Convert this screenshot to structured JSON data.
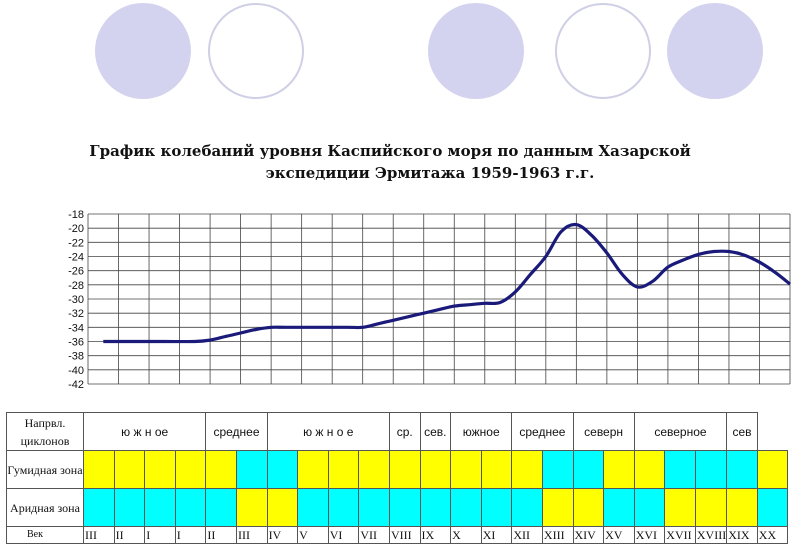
{
  "title_line1": "График колебаний уровня Каспийского моря по данным Хазарской",
  "title_line2": "экспедиции Эрмитажа 1959-1963 г.г.",
  "chart_data": {
    "type": "line",
    "title": "График колебаний уровня Каспийского моря по данным Хазарской экспедиции Эрмитажа 1959-1963 г.г.",
    "ylim": [
      -42,
      -18
    ],
    "yticks": [
      "-18",
      "-20",
      "-22",
      "-24",
      "-26",
      "-28",
      "-30",
      "-32",
      "-34",
      "-36",
      "-38",
      "-40",
      "-42"
    ],
    "grid": true,
    "series": [
      {
        "color": "#1a1a7a",
        "x": [
          0,
          1,
          2,
          3,
          3.5,
          4,
          4.5,
          5,
          5.5,
          6,
          7,
          8,
          8.5,
          9,
          9.5,
          10,
          10.5,
          11,
          11.5,
          12,
          12.5,
          13,
          13.5,
          14,
          14.5,
          15,
          15.5,
          16,
          16.5,
          17,
          17.5,
          18,
          18.5,
          19,
          19.5,
          20,
          20.5,
          21,
          21.5,
          22,
          22.5
        ],
        "values": [
          -36,
          -36,
          -36,
          -36,
          -35.8,
          -35.3,
          -34.8,
          -34.3,
          -34,
          -34,
          -34,
          -34,
          -34,
          -33.5,
          -33,
          -32.5,
          -32,
          -31.5,
          -31,
          -30.8,
          -30.6,
          -30.5,
          -29,
          -26.5,
          -24,
          -20.5,
          -19.5,
          -21,
          -23.5,
          -26.5,
          -28.3,
          -27.5,
          -25.5,
          -24.5,
          -23.7,
          -23.3,
          -23.3,
          -23.8,
          -24.8,
          -26.2,
          -27.9
        ]
      }
    ]
  },
  "table": {
    "row_labels": {
      "direction": "Напрвл. циклонов",
      "humid": "Гумидная зона",
      "arid": "Аридная зона",
      "century": "Век"
    },
    "directions": [
      {
        "text": "ю ж н ое",
        "span": 4
      },
      {
        "text": "среднее",
        "span": 2
      },
      {
        "text": "ю ж н о е",
        "span": 4
      },
      {
        "text": "ср.",
        "span": 1
      },
      {
        "text": "сев.",
        "span": 1
      },
      {
        "text": "южное",
        "span": 2
      },
      {
        "text": "среднее",
        "span": 2
      },
      {
        "text": "северн",
        "span": 2
      },
      {
        "text": "северное",
        "span": 3
      },
      {
        "text": "сев",
        "span": 1
      }
    ],
    "humid": [
      "Y",
      "Y",
      "Y",
      "Y",
      "Y",
      "C",
      "C",
      "Y",
      "Y",
      "Y",
      "Y",
      "Y",
      "Y",
      "Y",
      "Y",
      "C",
      "C",
      "Y",
      "Y",
      "C",
      "C",
      "C",
      "Y"
    ],
    "arid": [
      "C",
      "C",
      "C",
      "C",
      "C",
      "Y",
      "Y",
      "C",
      "C",
      "C",
      "C",
      "C",
      "C",
      "C",
      "C",
      "Y",
      "Y",
      "C",
      "C",
      "Y",
      "Y",
      "Y",
      "C"
    ],
    "centuries": [
      "III",
      "II",
      "I",
      "I",
      "II",
      "III",
      "IV",
      "V",
      "VI",
      "VII",
      "VIII",
      "IX",
      "X",
      "XI",
      "XII",
      "XIII",
      "XIV",
      "XV",
      "XVI",
      "XVII",
      "XVIII",
      "XIX",
      "XX"
    ]
  },
  "colors": {
    "yellow": "#ffff00",
    "cyan": "#00ffff",
    "line": "#1a1a7a"
  }
}
